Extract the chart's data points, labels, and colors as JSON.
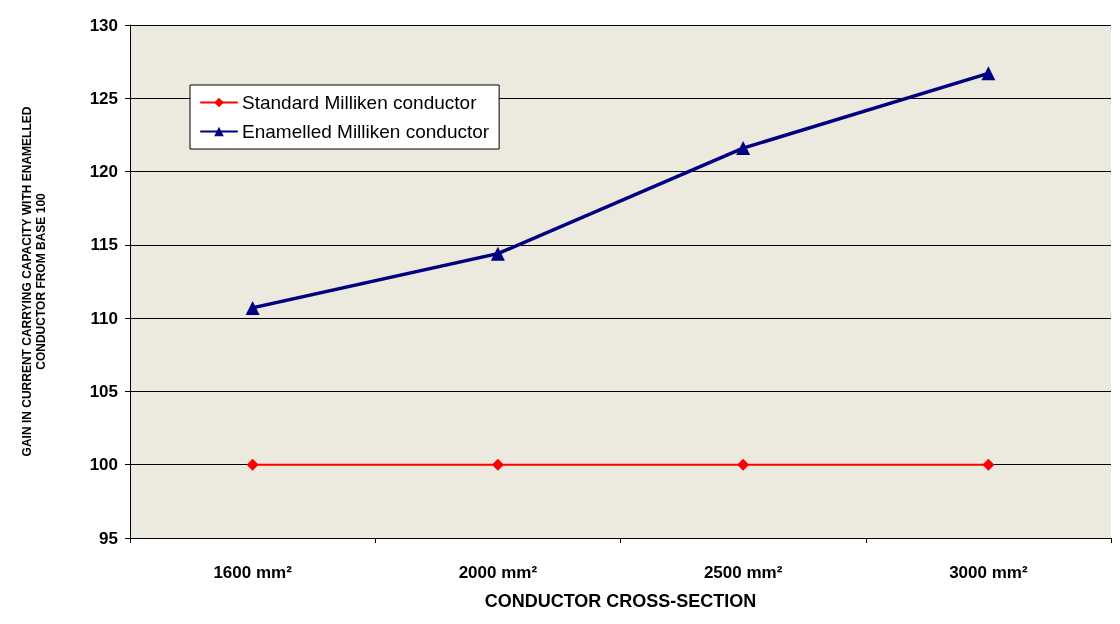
{
  "chart_data": {
    "type": "line",
    "xlabel": "CONDUCTOR CROSS-SECTION",
    "ylabel": "GAIN IN CURRENT CARRYING CAPACITY WITH ENAMELLED\nCONDUCTOR FROM BASE 100",
    "categories": [
      "1600 mm²",
      "2000 mm²",
      "2500 mm²",
      "3000 mm²"
    ],
    "series": [
      {
        "name": "Standard Milliken conductor",
        "color": "#ff0000",
        "marker": "diamond",
        "values": [
          100,
          100,
          100,
          100
        ]
      },
      {
        "name": "Enamelled Milliken conductor",
        "color": "#000080",
        "marker": "triangle",
        "values": [
          110.7,
          114.4,
          121.6,
          126.7
        ]
      }
    ],
    "ylim": [
      95,
      130
    ],
    "yticks": [
      95,
      100,
      105,
      110,
      115,
      120,
      125,
      130
    ],
    "grid": "y",
    "legend": "top left"
  }
}
